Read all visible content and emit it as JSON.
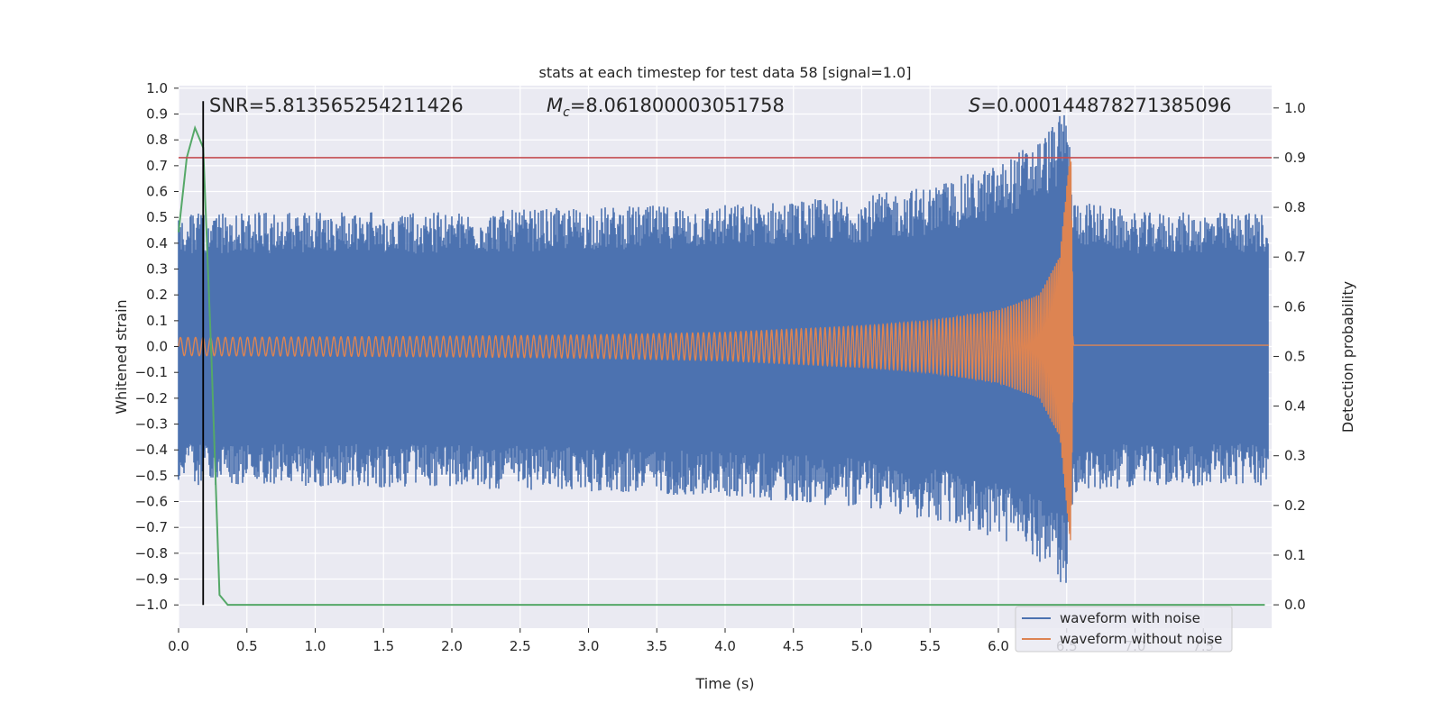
{
  "chart_data": {
    "type": "line",
    "title": "stats at each timestep for test data 58 [signal=1.0]",
    "xlabel": "Time (s)",
    "ylabel": "Whitened strain",
    "y2label": "Detection probability",
    "xlim": [
      0.0,
      8.0
    ],
    "ylim": [
      -1.09,
      1.01
    ],
    "y2lim": [
      -0.047,
      1.045
    ],
    "xticks": [
      0.0,
      0.5,
      1.0,
      1.5,
      2.0,
      2.5,
      3.0,
      3.5,
      4.0,
      4.5,
      5.0,
      5.5,
      6.0,
      6.5,
      7.0,
      7.5
    ],
    "xtick_labels": [
      "0.0",
      "0.5",
      "1.0",
      "1.5",
      "2.0",
      "2.5",
      "3.0",
      "3.5",
      "4.0",
      "4.5",
      "5.0",
      "5.5",
      "6.0",
      "6.5",
      "7.0",
      "7.5"
    ],
    "yticks": [
      1.0,
      0.9,
      0.8,
      0.7,
      0.6,
      0.5,
      0.4,
      0.3,
      0.2,
      0.1,
      0.0,
      -0.1,
      -0.2,
      -0.3,
      -0.4,
      -0.5,
      -0.6,
      -0.7,
      -0.8,
      -0.9,
      -1.0
    ],
    "ytick_labels": [
      "1.0",
      "0.9",
      "0.8",
      "0.7",
      "0.6",
      "0.5",
      "0.4",
      "0.3",
      "0.2",
      "0.1",
      "0.0",
      "−0.1",
      "−0.2",
      "−0.3",
      "−0.4",
      "−0.5",
      "−0.6",
      "−0.7",
      "−0.8",
      "−0.9",
      "−1.0"
    ],
    "y2ticks": [
      1.0,
      0.9,
      0.8,
      0.7,
      0.6,
      0.5,
      0.4,
      0.3,
      0.2,
      0.1,
      0.0
    ],
    "y2tick_labels": [
      "1.0",
      "0.9",
      "0.8",
      "0.7",
      "0.6",
      "0.5",
      "0.4",
      "0.3",
      "0.2",
      "0.1",
      "0.0"
    ],
    "grid": true,
    "background": "#eaeaf2",
    "legend_placement": "lower-right",
    "annotations": {
      "snr": "SNR=5.813565254211426",
      "mc_symbol": "M",
      "mc_sub": "c",
      "mc_value": "=8.061800003051758",
      "s_symbol": "S",
      "s_value": "=0.000144878271385096"
    },
    "series": [
      {
        "name": "waveform with noise",
        "color": "#4c72b0",
        "axis": "left",
        "description_envelope": {
          "x": [
            0.0,
            1.0,
            2.0,
            3.0,
            4.0,
            5.0,
            5.5,
            6.0,
            6.3,
            6.45,
            6.5,
            6.55,
            7.0,
            8.0
          ],
          "upper": [
            0.5,
            0.5,
            0.5,
            0.52,
            0.53,
            0.56,
            0.6,
            0.68,
            0.78,
            0.86,
            0.92,
            0.55,
            0.5,
            0.5
          ],
          "lower": [
            -0.52,
            -0.52,
            -0.53,
            -0.54,
            -0.56,
            -0.6,
            -0.65,
            -0.72,
            -0.8,
            -0.88,
            -0.95,
            -0.55,
            -0.52,
            -0.52
          ]
        }
      },
      {
        "name": "waveform without noise",
        "color": "#dd8452",
        "axis": "left",
        "description_envelope": {
          "x": [
            0.0,
            1.0,
            2.0,
            3.0,
            4.0,
            5.0,
            5.5,
            6.0,
            6.3,
            6.45,
            6.53,
            6.55,
            8.0
          ],
          "amplitude": [
            0.035,
            0.037,
            0.04,
            0.045,
            0.055,
            0.08,
            0.1,
            0.14,
            0.2,
            0.35,
            0.78,
            0.0,
            0.0
          ],
          "ringdown_offset": 0.005
        }
      },
      {
        "name": "",
        "color": "#55a868",
        "axis": "right",
        "x": [
          0.0,
          0.06,
          0.12,
          0.18,
          0.24,
          0.3,
          0.36,
          0.5,
          1.0,
          2.0,
          3.0,
          4.0,
          5.0,
          6.0,
          7.0,
          7.95
        ],
        "y": [
          0.75,
          0.9,
          0.96,
          0.92,
          0.5,
          0.02,
          0.0,
          0.0,
          0.0,
          0.0,
          0.0,
          0.0,
          0.0,
          0.0,
          0.0,
          0.0
        ]
      }
    ],
    "reference_lines": [
      {
        "kind": "horizontal",
        "axis": "right",
        "value": 0.9,
        "color": "#c44e52"
      },
      {
        "kind": "vertical",
        "x": 0.18,
        "y_from": -1.0,
        "y_to": 0.95,
        "color": "#000000"
      }
    ]
  }
}
